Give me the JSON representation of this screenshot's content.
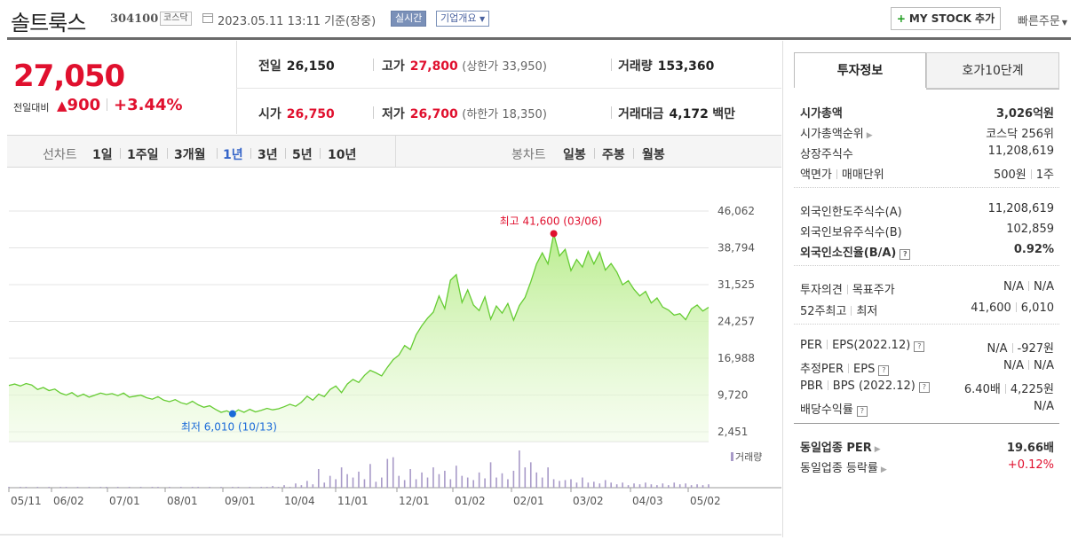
{
  "header": {
    "name": "솔트룩스",
    "code": "304100",
    "market": "코스닥",
    "datetime": "2023.05.11 13:11  기준(장중)",
    "realtime": "실시간",
    "company_info": "기업개요",
    "mystock": "MY STOCK 추가",
    "mystock_plus": "+",
    "quick_order": "빠른주문"
  },
  "price": {
    "current": "27,050",
    "prev_label": "전일대비",
    "change_arrow": "▲",
    "change": "900",
    "change_pct": "+3.44%",
    "prev_close_label": "전일",
    "prev_close": "26,150",
    "high_label": "고가",
    "high": "27,800",
    "upper_limit": "(상한가 33,950)",
    "volume_label": "거래량",
    "volume": "153,360",
    "open_label": "시가",
    "open": "26,750",
    "low_label": "저가",
    "low": "26,700",
    "lower_limit": "(하한가 18,350)",
    "amount_label": "거래대금",
    "amount": "4,172",
    "amount_unit": "백만"
  },
  "periods": {
    "line_label": "선차트",
    "items": [
      "1일",
      "1주일",
      "3개월",
      "1년",
      "3년",
      "5년",
      "10년"
    ],
    "selected": "1년",
    "candle_label": "봉차트",
    "candle_items": [
      "일봉",
      "주봉",
      "월봉"
    ]
  },
  "chart_data": {
    "type": "area",
    "x_ticks": [
      "05/11",
      "06/02",
      "07/01",
      "08/01",
      "09/01",
      "10/04",
      "11/01",
      "12/01",
      "01/02",
      "02/01",
      "03/02",
      "04/03",
      "05/02"
    ],
    "y_ticks": [
      46062,
      38794,
      31525,
      24257,
      16988,
      9720,
      2451
    ],
    "y_tick_labels": [
      "46,062",
      "38,794",
      "31,525",
      "24,257",
      "16,988",
      "9,720",
      "2,451"
    ],
    "ylim": [
      2451,
      46062
    ],
    "high_label": "최고 41,600 (03/06)",
    "low_label": "최저 6,010 (10/13)",
    "high": {
      "date": "03/06",
      "value": 41600
    },
    "low": {
      "date": "10/13",
      "value": 6010
    },
    "volume_label": "거래량",
    "line_color": "#66cc33",
    "high_color": "#e0102e",
    "low_color": "#1a6ad8",
    "volume_color": "#a89ac8",
    "series": [
      {
        "values": [
          11600,
          11900,
          11500,
          12000,
          11700,
          10800,
          11200,
          10600,
          10900,
          10100,
          9700,
          10200,
          9400,
          9900,
          9300,
          9700,
          10100,
          9800,
          10000,
          9600,
          10100,
          9300,
          9500,
          9700,
          9200,
          8900,
          9400,
          8700,
          8400,
          8800,
          8200,
          7900,
          8500,
          7800,
          7300,
          7600,
          6900,
          6300,
          6600,
          6010,
          6800,
          6300,
          6900,
          6400,
          6700,
          7100,
          6800,
          7000,
          7400,
          7900,
          7500,
          8300,
          9500,
          8700,
          9900,
          9400,
          10800,
          11500,
          10200,
          11900,
          12800,
          12200,
          13600,
          14600,
          14100,
          13500,
          15200,
          16700,
          17600,
          19500,
          18700,
          21600,
          23400,
          24900,
          26100,
          29300,
          26800,
          32400,
          33500,
          28000,
          30500,
          27500,
          26400,
          29100,
          24700,
          27300,
          25900,
          27800,
          24500,
          27400,
          29000,
          32100,
          35600,
          37800,
          35600,
          41600,
          37200,
          38500,
          34300,
          36500,
          35000,
          38100,
          35600,
          37900,
          34400,
          35700,
          34000,
          31500,
          32300,
          30600,
          29300,
          30200,
          27900,
          28900,
          27100,
          26500,
          25500,
          25800,
          24600,
          26700,
          27500,
          26300,
          27050
        ]
      }
    ],
    "volume": [
      1,
      0,
      1,
      1,
      0,
      1,
      0,
      1,
      0,
      1,
      1,
      0,
      1,
      0,
      1,
      0,
      1,
      1,
      0,
      1,
      0,
      1,
      0,
      1,
      0,
      1,
      1,
      0,
      1,
      0,
      1,
      0,
      1,
      1,
      0,
      1,
      0,
      1,
      0,
      1,
      1,
      0,
      1,
      0,
      1,
      1,
      2,
      1,
      3,
      1,
      5,
      3,
      8,
      4,
      22,
      6,
      14,
      10,
      24,
      16,
      12,
      19,
      10,
      28,
      7,
      12,
      34,
      36,
      14,
      9,
      22,
      10,
      18,
      12,
      24,
      16,
      20,
      10,
      26,
      14,
      12,
      9,
      18,
      11,
      30,
      12,
      17,
      10,
      20,
      44,
      24,
      30,
      18,
      12,
      24,
      10,
      8,
      9,
      10,
      6,
      12,
      6,
      7,
      5,
      9,
      6,
      4,
      6,
      3,
      5,
      4,
      6,
      4,
      3,
      5,
      3,
      6,
      4,
      5,
      3,
      4,
      3,
      4
    ]
  },
  "panel": {
    "tab_invest": "투자정보",
    "tab_hoga": "호가10단계",
    "rows": [
      {
        "l": "시가총액",
        "r": "3,026억원",
        "bold": true
      },
      {
        "l": "시가총액순위",
        "r": "코스닥 256위",
        "arrow": true
      },
      {
        "l": "상장주식수",
        "r": "11,208,619"
      },
      {
        "l": "액면가",
        "l2": "매매단위",
        "r": "500원",
        "r2": "1주"
      },
      {
        "l": "외국인한도주식수(A)",
        "r": "11,208,619"
      },
      {
        "l": "외국인보유주식수(B)",
        "r": "102,859"
      },
      {
        "l": "외국인소진율(B/A)",
        "r": "0.92%",
        "bold": true,
        "qm": true
      },
      {
        "l": "투자의견",
        "l2": "목표주가",
        "r": "N/A",
        "r2": "N/A"
      },
      {
        "l": "52주최고",
        "l2": "최저",
        "r": "41,600",
        "r2": "6,010"
      },
      {
        "l": "PER",
        "l2": "EPS(2022.12)",
        "r": "N/A",
        "r2": "-927원",
        "qm": true
      },
      {
        "l": "추정PER",
        "l2": "EPS",
        "r": "N/A",
        "r2": "N/A",
        "qm": true
      },
      {
        "l": "PBR",
        "l2": "BPS (2022.12)",
        "r": "6.40배",
        "r2": "4,225원",
        "qm": true
      },
      {
        "l": "배당수익률",
        "r": "N/A",
        "qm": true
      },
      {
        "l": "동일업종 PER",
        "r": "19.66배",
        "bold": true,
        "arrow": true
      },
      {
        "l": "동일업종 등락률",
        "r": "+0.12%",
        "red": true,
        "arrow": true
      }
    ]
  }
}
